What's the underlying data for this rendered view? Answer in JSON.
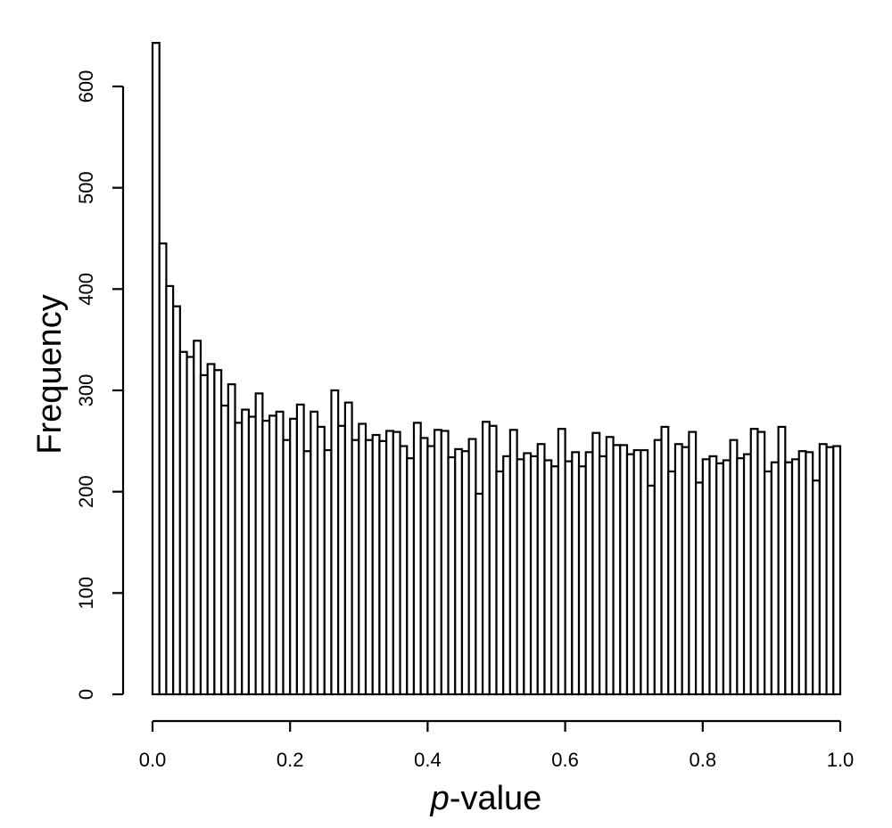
{
  "chart_data": {
    "type": "bar",
    "xlabel_italic": "p",
    "xlabel_rest": "-value",
    "ylabel": "Frequency",
    "xlim": [
      0,
      1
    ],
    "ylim": [
      0,
      600
    ],
    "bin_width": 0.01,
    "x_ticks": [
      "0.0",
      "0.2",
      "0.4",
      "0.6",
      "0.8",
      "1.0"
    ],
    "y_ticks": [
      "0",
      "100",
      "200",
      "300",
      "400",
      "500",
      "600"
    ],
    "values": [
      643,
      445,
      403,
      383,
      338,
      333,
      349,
      315,
      326,
      320,
      285,
      306,
      268,
      281,
      274,
      297,
      270,
      275,
      279,
      251,
      272,
      286,
      240,
      279,
      264,
      241,
      300,
      265,
      288,
      251,
      267,
      251,
      256,
      250,
      260,
      259,
      245,
      233,
      268,
      253,
      245,
      261,
      260,
      234,
      242,
      240,
      252,
      198,
      269,
      265,
      220,
      235,
      261,
      232,
      238,
      235,
      247,
      231,
      225,
      262,
      230,
      239,
      225,
      239,
      258,
      235,
      254,
      246,
      246,
      237,
      241,
      241,
      206,
      251,
      264,
      220,
      247,
      244,
      259,
      209,
      232,
      235,
      228,
      231,
      251,
      233,
      237,
      262,
      259,
      220,
      229,
      264,
      229,
      232,
      240,
      239,
      211,
      247,
      244,
      245
    ]
  }
}
